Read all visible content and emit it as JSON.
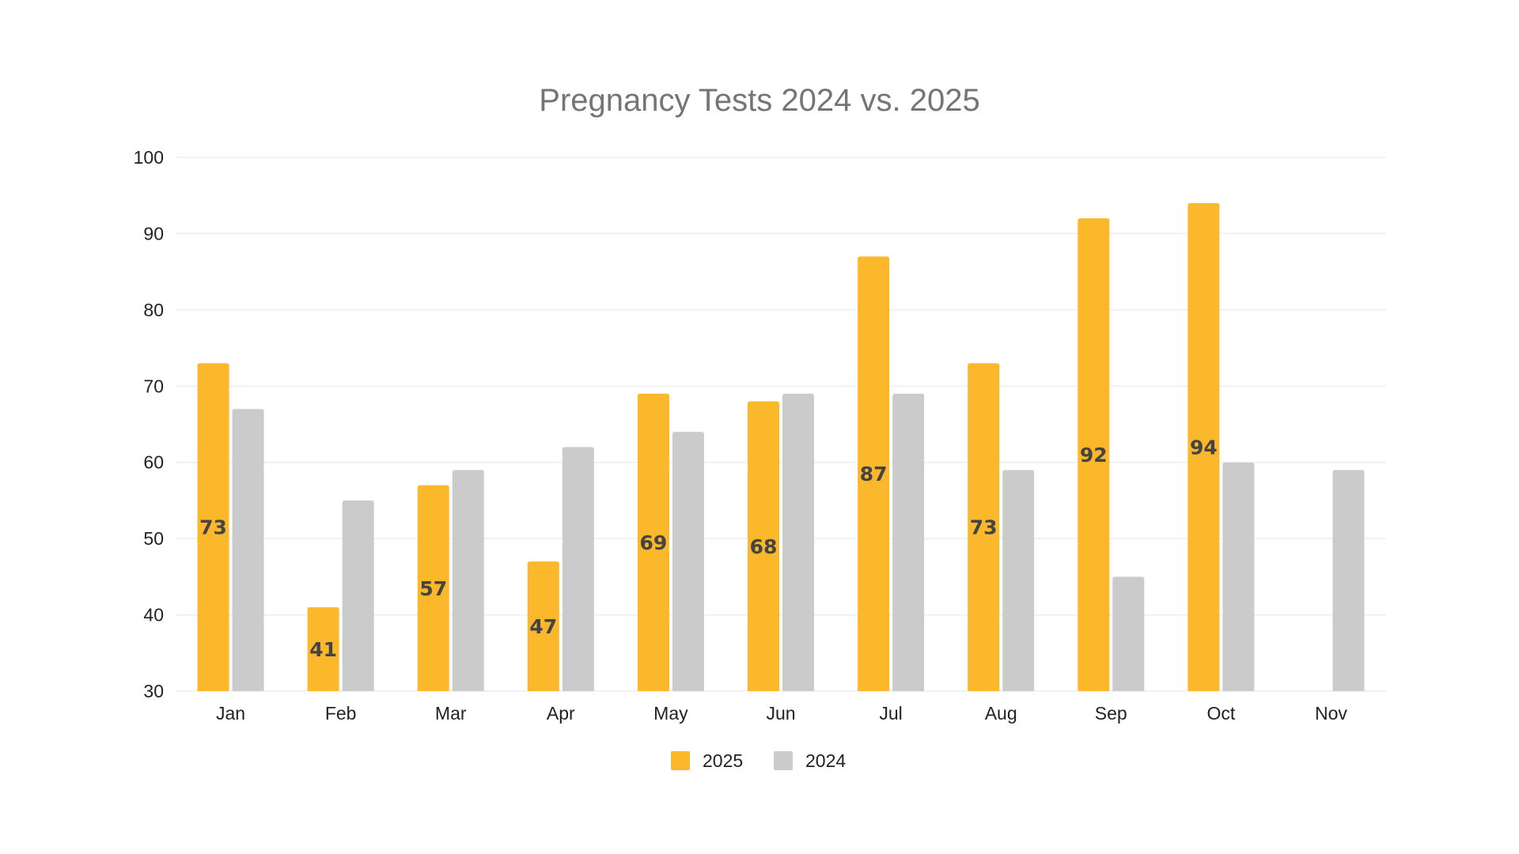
{
  "chart_data": {
    "type": "bar",
    "title": "Pregnancy Tests 2024 vs. 2025",
    "xlabel": "",
    "ylabel": "",
    "ylim": [
      30,
      100
    ],
    "yticks": [
      30,
      40,
      50,
      60,
      70,
      80,
      90,
      100
    ],
    "grid": true,
    "legend_position": "bottom",
    "categories": [
      "Jan",
      "Feb",
      "Mar",
      "Apr",
      "May",
      "Jun",
      "Jul",
      "Aug",
      "Sep",
      "Oct",
      "Nov"
    ],
    "series": [
      {
        "name": "2025",
        "color": "#FBB82B",
        "values": [
          73,
          41,
          57,
          47,
          69,
          68,
          87,
          73,
          92,
          94,
          null
        ],
        "show_labels": true
      },
      {
        "name": "2024",
        "color": "#CBCBCB",
        "values": [
          67,
          55,
          59,
          62,
          64,
          69,
          69,
          59,
          45,
          60,
          59
        ],
        "show_labels": false
      }
    ]
  }
}
